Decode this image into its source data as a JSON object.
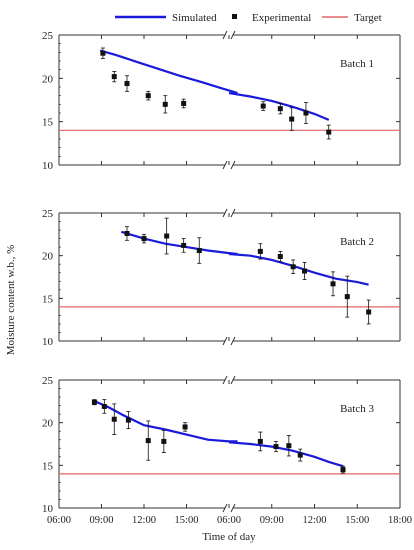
{
  "legend": {
    "simulated_label": "Simulated",
    "experimental_label": "Experimental",
    "target_label": "Target"
  },
  "colors": {
    "simulated": "#1a1adb",
    "target": "#e06666",
    "points": "#111111",
    "axis": "#333333"
  },
  "xlabel": "Time of day",
  "ylabel": "Moisture content w.b., %",
  "chart_data": {
    "type": "line",
    "x_ticks": [
      "06:00",
      "09:00",
      "12:00",
      "15:00",
      "06:00",
      "09:00",
      "12:00",
      "15:00",
      "18:00"
    ],
    "y_ticks": [
      "10",
      "15",
      "20",
      "25"
    ],
    "ylim": [
      10,
      25
    ],
    "axis_break_symbol": "//",
    "xlabel": "Time of day",
    "ylabel": "Moisture content w.b., %",
    "legend": [
      "Simulated",
      "Experimental",
      "Target"
    ],
    "panels": [
      {
        "label": "Batch 1",
        "target": 14,
        "simulated": {
          "day1": [
            [
              8.9,
              23.2
            ],
            [
              10.0,
              22.7
            ],
            [
              11.5,
              21.9
            ],
            [
              13.0,
              21.1
            ],
            [
              14.5,
              20.3
            ],
            [
              16.0,
              19.6
            ],
            [
              17.4,
              18.9
            ],
            [
              18.6,
              18.3
            ]
          ],
          "day2": [
            [
              6.0,
              18.3
            ],
            [
              7.5,
              17.9
            ],
            [
              9.0,
              17.4
            ],
            [
              10.5,
              16.7
            ],
            [
              12.0,
              15.9
            ],
            [
              13.0,
              15.2
            ]
          ]
        },
        "experimental": [
          {
            "day": 1,
            "x": 9.1,
            "y": 22.9,
            "err": 0.6
          },
          {
            "day": 1,
            "x": 9.9,
            "y": 20.2,
            "err": 0.6
          },
          {
            "day": 1,
            "x": 10.8,
            "y": 19.4,
            "err": 0.9
          },
          {
            "day": 1,
            "x": 12.3,
            "y": 18.0,
            "err": 0.5
          },
          {
            "day": 1,
            "x": 13.5,
            "y": 17.0,
            "err": 1.0
          },
          {
            "day": 1,
            "x": 14.8,
            "y": 17.1,
            "err": 0.5
          },
          {
            "day": 2,
            "x": 8.4,
            "y": 16.8,
            "err": 0.5
          },
          {
            "day": 2,
            "x": 9.6,
            "y": 16.5,
            "err": 0.6
          },
          {
            "day": 2,
            "x": 10.4,
            "y": 15.3,
            "err": 1.3
          },
          {
            "day": 2,
            "x": 11.4,
            "y": 16.0,
            "err": 1.2
          },
          {
            "day": 2,
            "x": 13.0,
            "y": 13.8,
            "err": 0.8
          }
        ]
      },
      {
        "label": "Batch 2",
        "target": 14,
        "simulated": {
          "day1": [
            [
              10.4,
              22.8
            ],
            [
              12.0,
              22.0
            ],
            [
              13.5,
              21.4
            ],
            [
              15.0,
              21.0
            ],
            [
              16.5,
              20.6
            ],
            [
              18.0,
              20.3
            ],
            [
              18.6,
              20.2
            ]
          ],
          "day2": [
            [
              6.0,
              20.2
            ],
            [
              7.5,
              20.0
            ],
            [
              9.0,
              19.5
            ],
            [
              10.5,
              18.8
            ],
            [
              12.0,
              18.0
            ],
            [
              13.5,
              17.3
            ],
            [
              15.0,
              16.9
            ],
            [
              15.8,
              16.6
            ]
          ]
        },
        "experimental": [
          {
            "day": 1,
            "x": 10.8,
            "y": 22.6,
            "err": 0.8
          },
          {
            "day": 1,
            "x": 12.0,
            "y": 22.0,
            "err": 0.5
          },
          {
            "day": 1,
            "x": 13.6,
            "y": 22.3,
            "err": 2.1
          },
          {
            "day": 1,
            "x": 14.8,
            "y": 21.2,
            "err": 0.8
          },
          {
            "day": 1,
            "x": 15.9,
            "y": 20.6,
            "err": 1.5
          },
          {
            "day": 2,
            "x": 8.2,
            "y": 20.5,
            "err": 0.9
          },
          {
            "day": 2,
            "x": 9.6,
            "y": 19.9,
            "err": 0.6
          },
          {
            "day": 2,
            "x": 10.5,
            "y": 18.7,
            "err": 0.8
          },
          {
            "day": 2,
            "x": 11.3,
            "y": 18.2,
            "err": 1.0
          },
          {
            "day": 2,
            "x": 13.3,
            "y": 16.7,
            "err": 1.4
          },
          {
            "day": 2,
            "x": 14.3,
            "y": 15.2,
            "err": 2.4
          },
          {
            "day": 2,
            "x": 15.8,
            "y": 13.4,
            "err": 1.4
          }
        ]
      },
      {
        "label": "Batch 3",
        "target": 14,
        "simulated": {
          "day1": [
            [
              8.4,
              22.6
            ],
            [
              9.5,
              21.8
            ],
            [
              10.5,
              20.9
            ],
            [
              12.0,
              19.7
            ],
            [
              13.5,
              19.2
            ],
            [
              15.0,
              18.6
            ],
            [
              16.5,
              18.0
            ],
            [
              18.0,
              17.8
            ],
            [
              18.6,
              17.8
            ]
          ],
          "day2": [
            [
              6.0,
              17.7
            ],
            [
              7.5,
              17.5
            ],
            [
              9.0,
              17.2
            ],
            [
              10.5,
              16.7
            ],
            [
              12.0,
              16.0
            ],
            [
              13.0,
              15.4
            ],
            [
              14.0,
              14.9
            ]
          ]
        },
        "experimental": [
          {
            "day": 1,
            "x": 8.5,
            "y": 22.4,
            "err": 0.3
          },
          {
            "day": 1,
            "x": 9.2,
            "y": 21.9,
            "err": 0.8
          },
          {
            "day": 1,
            "x": 9.9,
            "y": 20.4,
            "err": 1.8
          },
          {
            "day": 1,
            "x": 10.9,
            "y": 20.3,
            "err": 1.0
          },
          {
            "day": 1,
            "x": 12.3,
            "y": 17.9,
            "err": 2.3
          },
          {
            "day": 1,
            "x": 13.4,
            "y": 17.8,
            "err": 1.3
          },
          {
            "day": 1,
            "x": 14.9,
            "y": 19.5,
            "err": 0.5
          },
          {
            "day": 2,
            "x": 8.2,
            "y": 17.8,
            "err": 1.1
          },
          {
            "day": 2,
            "x": 9.3,
            "y": 17.2,
            "err": 0.6
          },
          {
            "day": 2,
            "x": 10.2,
            "y": 17.3,
            "err": 1.2
          },
          {
            "day": 2,
            "x": 11.0,
            "y": 16.2,
            "err": 0.7
          },
          {
            "day": 2,
            "x": 14.0,
            "y": 14.5,
            "err": 0.4
          }
        ]
      }
    ]
  }
}
